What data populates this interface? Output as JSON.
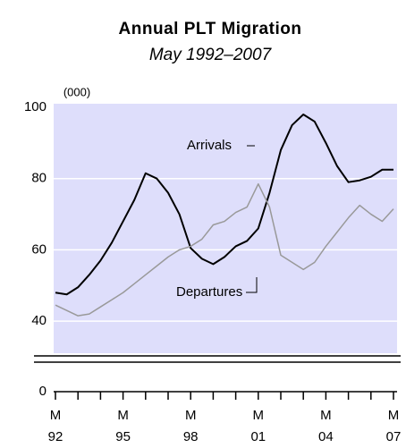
{
  "chart_data": {
    "type": "line",
    "title": "Annual PLT Migration",
    "subtitle": "May 1992–2007",
    "y_unit_label": "(000)",
    "x": [
      1992.33,
      1992.83,
      1993.33,
      1993.83,
      1994.33,
      1994.83,
      1995.33,
      1995.83,
      1996.33,
      1996.83,
      1997.33,
      1997.83,
      1998.33,
      1998.83,
      1999.33,
      1999.83,
      2000.33,
      2000.83,
      2001.33,
      2001.83,
      2002.33,
      2002.83,
      2003.33,
      2003.83,
      2004.33,
      2004.83,
      2005.33,
      2005.83,
      2006.33,
      2006.83,
      2007.33
    ],
    "series": [
      {
        "name": "Arrivals",
        "color": "#000000",
        "values": [
          48,
          47.5,
          49.5,
          53,
          57,
          62,
          68,
          74,
          81.5,
          80,
          76,
          70,
          60.5,
          57.5,
          56,
          58,
          61,
          62.5,
          66,
          76,
          88,
          95,
          98,
          96,
          90,
          83.5,
          79,
          79.5,
          80.5,
          82.5,
          82.5
        ]
      },
      {
        "name": "Departures",
        "color": "#999999",
        "values": [
          44.5,
          43,
          41.5,
          42,
          44,
          46,
          48,
          50.5,
          53,
          55.5,
          58,
          60,
          61,
          63,
          67,
          68,
          70.5,
          72,
          78.5,
          72,
          58.5,
          56.5,
          54.5,
          56.5,
          61,
          65,
          69,
          72.5,
          70,
          68,
          71.5
        ]
      }
    ],
    "xlim": [
      1992.33,
      2007.33
    ],
    "xticks": [
      {
        "value": 1992.33,
        "label": "M\n92"
      },
      {
        "value": 1995.33,
        "label": "M\n95"
      },
      {
        "value": 1998.33,
        "label": "M\n98"
      },
      {
        "value": 2001.33,
        "label": "M\n01"
      },
      {
        "value": 2004.33,
        "label": "M\n04"
      },
      {
        "value": 2007.33,
        "label": "M\n07"
      }
    ],
    "xminorticks": [
      1993.33,
      1994.33,
      1996.33,
      1997.33,
      1999.33,
      2000.33,
      2002.33,
      2003.33,
      2005.33,
      2006.33
    ],
    "ylim": [
      31,
      100
    ],
    "yticks": [
      0,
      40,
      60,
      80,
      100
    ],
    "grid": true,
    "axis_break": true
  }
}
